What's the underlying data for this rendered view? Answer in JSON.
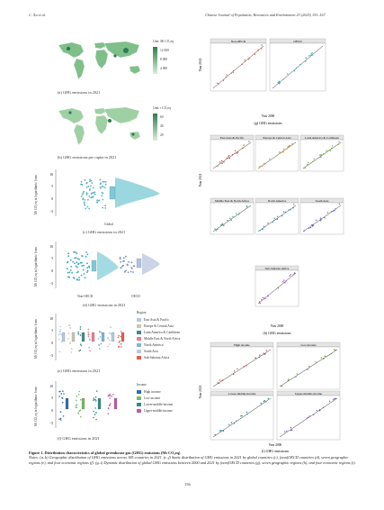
{
  "header": {
    "left": "C. Xu et al.",
    "right": "Chinese Journal of Population, Resources and Environment 23 (2025) 153–167"
  },
  "left": {
    "a": {
      "unit": "Unit: Mt CO₂eq",
      "legend": [
        "12 000",
        "8 000",
        "4 000"
      ],
      "caption": "(a) GHG emissions in 2021"
    },
    "b": {
      "unit": "Unit: t CO₂eq",
      "legend": [
        "60",
        "40",
        "20"
      ],
      "caption": "(b) GHG emissions per capita in 2021"
    },
    "c": {
      "ylabel": "Mt CO₂eq in logarithmic form",
      "yticks": [
        "10",
        "5",
        "0",
        "−5"
      ],
      "xlabel": "Global",
      "caption": "(c) GHG emissions in 2021"
    },
    "d": {
      "ylabel": "Mt CO₂eq in logarithmic form",
      "yticks": [
        "10",
        "5",
        "0",
        "−5"
      ],
      "xlabels": [
        "Non-OECD",
        "OECD"
      ],
      "caption": "(d) GHG emissions in 2021"
    },
    "e": {
      "ylabel": "Mt CO₂eq in logarithmic form",
      "yticks": [
        "10",
        "5",
        "0",
        "−5"
      ],
      "legend_title": "Region",
      "legend": [
        "East Asia & Pacific",
        "Europe & Central Asia",
        "Latin America & Caribbean",
        "Middle East & North Africa",
        "North America",
        "South Asia",
        "Sub-Saharan Africa"
      ],
      "caption": "(e) GHG emissions in 2021"
    },
    "f": {
      "ylabel": "Mt CO₂eq in logarithmic form",
      "yticks": [
        "10",
        "5",
        "0",
        "−5"
      ],
      "legend_title": "Income",
      "legend": [
        "High income",
        "Low income",
        "Lower-middle-income",
        "Upper-middle-income"
      ],
      "caption": "(f) GHG emissions in 2021"
    }
  },
  "right": {
    "g": {
      "panels": [
        "Non-OECD",
        "OECD"
      ],
      "ylabel": "Year 2021",
      "xlabel": "Year 2000",
      "yticks": [
        "10",
        "5",
        "0"
      ],
      "xticks": [
        "0",
        "5"
      ],
      "caption": "(g) GHG emissions"
    },
    "h": {
      "panels": [
        "East Asia & Pacific",
        "Europe & Central Asia",
        "Latin America & Caribbean",
        "Middle East & North Africa",
        "North America",
        "South Asia",
        "Sub-Saharan Africa"
      ],
      "ylabel": "Year 2021",
      "xlabel": "Year 2000",
      "yticks": [
        "10",
        "5",
        "0"
      ],
      "xticks": [
        "0",
        "5"
      ],
      "caption": "(h) GHG emissions"
    },
    "i": {
      "panels": [
        "High income",
        "Low income",
        "Lower-middle-income",
        "Upper-middle-income"
      ],
      "ylabel": "Year 2021",
      "xlabel": "Year 2000",
      "yticks": [
        "10",
        "5",
        "0"
      ],
      "xticks": [
        "0",
        "5"
      ],
      "caption": "(i) GHG emissions"
    }
  },
  "figure_caption": {
    "title": "Figure 1. Distribution characteristics of global greenhouse gas (GHG) emissions (Mt CO₂eq)",
    "notes": "Notes: (a–b) Geographic distribution of GHG emissions across 185 countries in 2021. (c–f) Static distribution of GHG emissions in 2021 by global countries (c), (non)OECD countries (d), seven geographic regions (e), and four economic regions (f). (g–i) Dynamic distribution of global GHG emissions between 2000 and 2021 by (non)OECD countries (g), seven geographic regions (h), and four economic regions (i)."
  },
  "page_number": "156",
  "colors": {
    "regions": [
      "#b7c7e6",
      "#c9c6b3",
      "#3a8f82",
      "#e87f8d",
      "#7fb7d8",
      "#b8c9dc",
      "#e65c4f"
    ],
    "income": [
      "#2f6db3",
      "#7ab86a",
      "#2d8c7c",
      "#c05a9e"
    ],
    "map_fill": "#7fbf8a",
    "scatter_line": "#333333"
  }
}
